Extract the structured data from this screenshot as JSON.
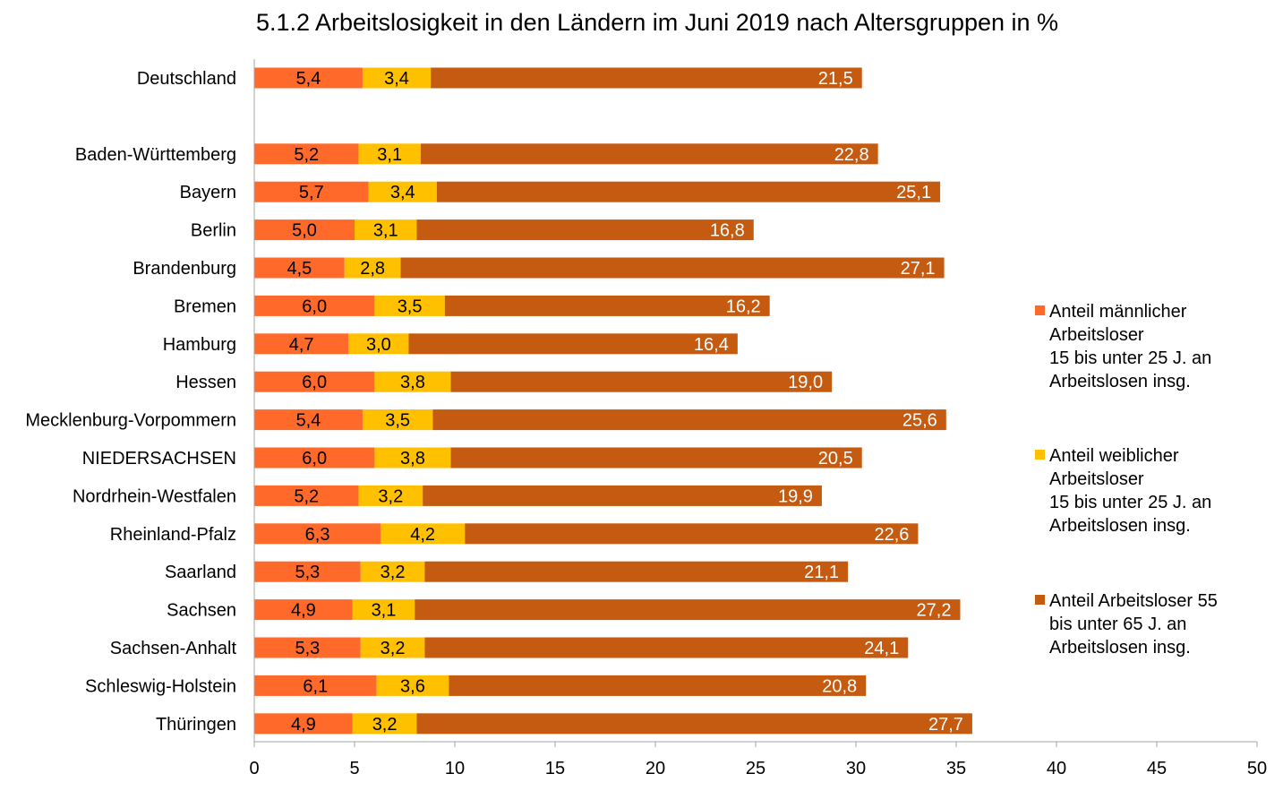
{
  "chart_data": {
    "type": "bar",
    "orientation": "horizontal",
    "stacked": true,
    "title": "5.1.2 Arbeitslosigkeit in den Ländern im Juni 2019 nach Altersgruppen in %",
    "xlabel": "",
    "ylabel": "",
    "xlim": [
      0,
      50
    ],
    "x_ticks": [
      0,
      5,
      10,
      15,
      20,
      25,
      30,
      35,
      40,
      45,
      50
    ],
    "grid": false,
    "legend_position": "right",
    "categories": [
      "Deutschland",
      "",
      "Baden-Württemberg",
      "Bayern",
      "Berlin",
      "Brandenburg",
      "Bremen",
      "Hamburg",
      "Hessen",
      "Mecklenburg-Vorpommern",
      "NIEDERSACHSEN",
      "Nordrhein-Westfalen",
      "Rheinland-Pfalz",
      "Saarland",
      "Sachsen",
      "Sachsen-Anhalt",
      "Schleswig-Holstein",
      "Thüringen"
    ],
    "series": [
      {
        "name": "Anteil männlicher Arbeitsloser 15 bis unter 25 J. an Arbeitslosen insg.",
        "legend_lines": [
          "Anteil männlicher",
          "Arbeitsloser",
          "15 bis unter 25 J. an",
          "Arbeitslosen insg."
        ],
        "color": "#ff6a2b",
        "label_color": "#000000",
        "values": [
          5.4,
          null,
          5.2,
          5.7,
          5.0,
          4.5,
          6.0,
          4.7,
          6.0,
          5.4,
          6.0,
          5.2,
          6.3,
          5.3,
          4.9,
          5.3,
          6.1,
          4.9
        ],
        "labels": [
          "5,4",
          "",
          "5,2",
          "5,7",
          "5,0",
          "4,5",
          "6,0",
          "4,7",
          "6,0",
          "5,4",
          "6,0",
          "5,2",
          "6,3",
          "5,3",
          "4,9",
          "5,3",
          "6,1",
          "4,9"
        ]
      },
      {
        "name": "Anteil weiblicher Arbeitsloser 15 bis unter 25 J. an Arbeitslosen insg.",
        "legend_lines": [
          "Anteil weiblicher",
          "Arbeitsloser",
          "15 bis unter 25 J. an",
          "Arbeitslosen insg."
        ],
        "color": "#ffc000",
        "label_color": "#000000",
        "values": [
          3.4,
          null,
          3.1,
          3.4,
          3.1,
          2.8,
          3.5,
          3.0,
          3.8,
          3.5,
          3.8,
          3.2,
          4.2,
          3.2,
          3.1,
          3.2,
          3.6,
          3.2
        ],
        "labels": [
          "3,4",
          "",
          "3,1",
          "3,4",
          "3,1",
          "2,8",
          "3,5",
          "3,0",
          "3,8",
          "3,5",
          "3,8",
          "3,2",
          "4,2",
          "3,2",
          "3,1",
          "3,2",
          "3,6",
          "3,2"
        ]
      },
      {
        "name": "Anteil Arbeitsloser 55 bis unter 65 J. an Arbeitslosen insg.",
        "legend_lines": [
          "Anteil Arbeitsloser 55",
          "bis unter 65 J. an",
          "Arbeitslosen insg."
        ],
        "color": "#c55a11",
        "label_color": "#ffffff",
        "values": [
          21.5,
          null,
          22.8,
          25.1,
          16.8,
          27.1,
          16.2,
          16.4,
          19.0,
          25.6,
          20.5,
          19.9,
          22.6,
          21.1,
          27.2,
          24.1,
          20.8,
          27.7
        ],
        "labels": [
          "21,5",
          "",
          "22,8",
          "25,1",
          "16,8",
          "27,1",
          "16,2",
          "16,4",
          "19,0",
          "25,6",
          "20,5",
          "19,9",
          "22,6",
          "21,1",
          "27,2",
          "24,1",
          "20,8",
          "27,7"
        ]
      }
    ],
    "colors": {
      "axis": "#a6a6a6",
      "background": "#ffffff"
    }
  }
}
